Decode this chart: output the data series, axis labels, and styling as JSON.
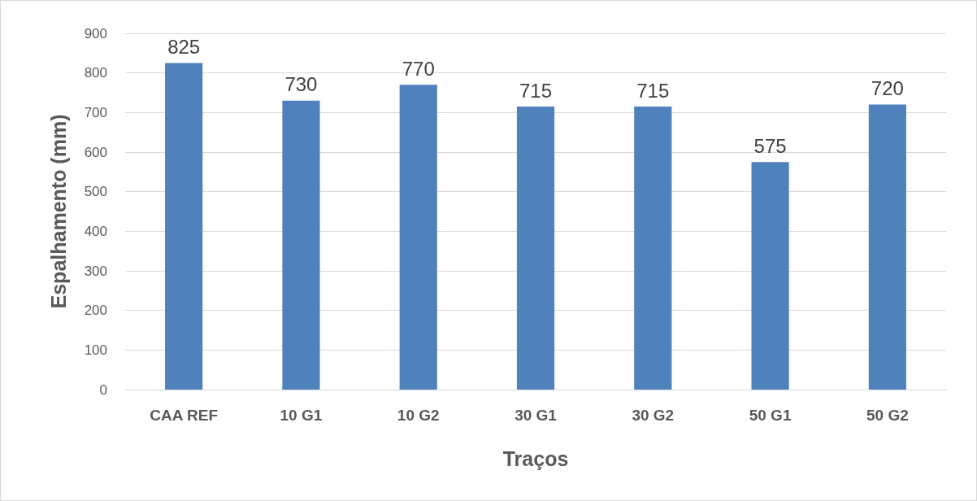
{
  "chart_data": {
    "type": "bar",
    "xlabel": "Traços",
    "ylabel": "Espalhamento (mm)",
    "categories": [
      "CAA REF",
      "10 G1",
      "10 G2",
      "30 G1",
      "30 G2",
      "50 G1",
      "50 G2"
    ],
    "values": [
      825,
      730,
      770,
      715,
      715,
      575,
      720
    ],
    "color": "#4f81bd",
    "ylim": [
      0,
      900
    ],
    "yticks": [
      0,
      100,
      200,
      300,
      400,
      500,
      600,
      700,
      800,
      900
    ],
    "grid": "y",
    "data_labels": true
  }
}
